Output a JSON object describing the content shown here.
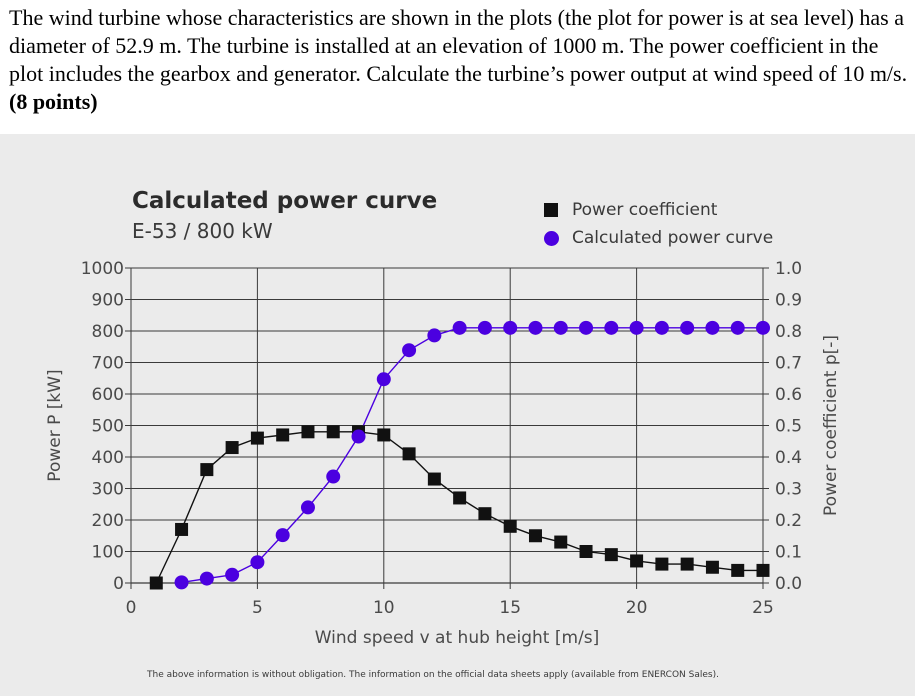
{
  "question": {
    "text": "The wind turbine whose characteristics are shown in the plots (the plot for power is at sea level) has a diameter of 52.9 m. The turbine is installed at an elevation of 1000 m. The power coefficient in the plot includes the gearbox and generator. Calculate the turbine’s power output at wind speed of 10 m/s.",
    "points": "(8 points)"
  },
  "footnote": "The above information is without obligation. The information on the official data sheets apply (available from ENERCON Sales).",
  "colors": {
    "power_curve": "#4b00e0",
    "power_coefficient": "#111111",
    "background": "#ebebeb",
    "grid": "#3a3a3a"
  },
  "chart_data": {
    "type": "line",
    "title": "Calculated power curve",
    "subtitle": "E-53 / 800 kW",
    "xlabel": "Wind speed v at hub height [m/s]",
    "ylabel_left": "Power P [kW]",
    "ylabel_right": "Power coefficient  p[-]",
    "xlim": [
      0,
      25
    ],
    "ylim_left": [
      0,
      1000
    ],
    "ylim_right": [
      0.0,
      1.0
    ],
    "x_ticks": [
      "0",
      "5",
      "10",
      "15",
      "20",
      "25"
    ],
    "y_ticks_left": [
      "0",
      "100",
      "200",
      "300",
      "400",
      "500",
      "600",
      "700",
      "800",
      "900",
      "1000"
    ],
    "y_ticks_right": [
      "0.0",
      "0.1",
      "0.2",
      "0.3",
      "0.4",
      "0.5",
      "0.6",
      "0.7",
      "0.8",
      "0.9",
      "1.0"
    ],
    "grid": true,
    "legend_position": "top-right",
    "series": [
      {
        "name": "Power coefficient",
        "axis": "right",
        "marker": "square",
        "x": [
          1,
          2,
          3,
          4,
          5,
          6,
          7,
          8,
          9,
          10,
          11,
          12,
          13,
          14,
          15,
          16,
          17,
          18,
          19,
          20,
          21,
          22,
          23,
          24,
          25
        ],
        "values": [
          0.0,
          0.17,
          0.36,
          0.43,
          0.46,
          0.47,
          0.48,
          0.48,
          0.48,
          0.47,
          0.41,
          0.33,
          0.27,
          0.22,
          0.18,
          0.15,
          0.13,
          0.1,
          0.09,
          0.07,
          0.06,
          0.06,
          0.05,
          0.04,
          0.04
        ]
      },
      {
        "name": "Calculated power curve",
        "axis": "left",
        "marker": "circle",
        "x": [
          2,
          3,
          4,
          5,
          6,
          7,
          8,
          9,
          10,
          11,
          12,
          13,
          14,
          15,
          16,
          17,
          18,
          19,
          20,
          21,
          22,
          23,
          24,
          25
        ],
        "values": [
          2,
          14,
          26,
          66,
          152,
          240,
          338,
          465,
          647,
          739,
          786,
          810,
          810,
          810,
          810,
          810,
          810,
          810,
          810,
          810,
          810,
          810,
          810,
          810
        ]
      }
    ]
  }
}
